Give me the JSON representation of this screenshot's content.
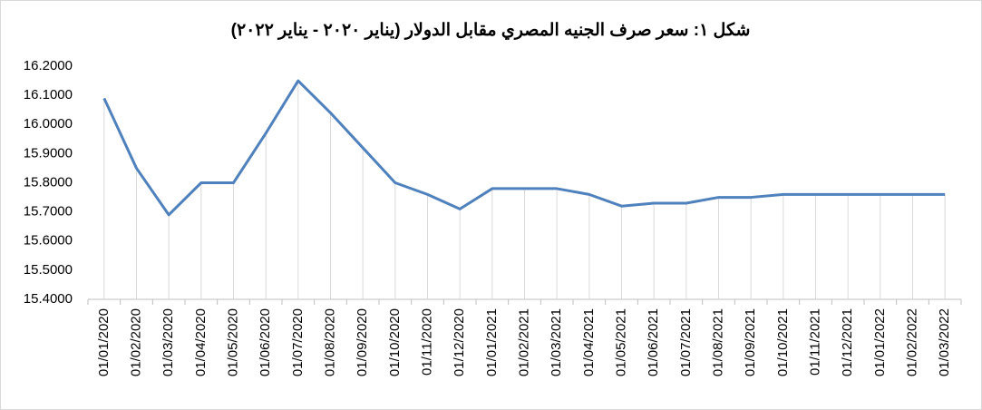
{
  "chart_data": {
    "type": "line",
    "title": "شكل ١: سعر صرف الجنيه المصري مقابل الدولار (يناير ٢٠٢٠ - يناير ٢٠٢٢)",
    "categories": [
      "01/01/2020",
      "01/02/2020",
      "01/03/2020",
      "01/04/2020",
      "01/05/2020",
      "01/06/2020",
      "01/07/2020",
      "01/08/2020",
      "01/09/2020",
      "01/10/2020",
      "01/11/2020",
      "01/12/2020",
      "01/01/2021",
      "01/02/2021",
      "01/03/2021",
      "01/04/2021",
      "01/05/2021",
      "01/06/2021",
      "01/07/2021",
      "01/08/2021",
      "01/09/2021",
      "01/10/2021",
      "01/11/2021",
      "01/12/2021",
      "01/01/2022",
      "01/02/2022",
      "01/03/2022"
    ],
    "values": [
      16.09,
      15.85,
      15.69,
      15.8,
      15.8,
      15.97,
      16.15,
      16.04,
      15.92,
      15.8,
      15.76,
      15.71,
      15.78,
      15.78,
      15.78,
      15.76,
      15.72,
      15.73,
      15.73,
      15.75,
      15.75,
      15.76,
      15.76,
      15.76,
      15.76,
      15.76,
      15.76
    ],
    "color": "#4f81bd",
    "ylim": [
      15.4,
      16.2
    ],
    "yticks": [
      {
        "value": 15.4,
        "label": "15.4000"
      },
      {
        "value": 15.5,
        "label": "15.5000"
      },
      {
        "value": 15.6,
        "label": "15.6000"
      },
      {
        "value": 15.7,
        "label": "15.7000"
      },
      {
        "value": 15.8,
        "label": "15.8000"
      },
      {
        "value": 15.9,
        "label": "15.9000"
      },
      {
        "value": 16.0,
        "label": "16.0000"
      },
      {
        "value": 16.1,
        "label": "16.1000"
      },
      {
        "value": 16.2,
        "label": "16.2000"
      }
    ],
    "drop_lines": true
  }
}
